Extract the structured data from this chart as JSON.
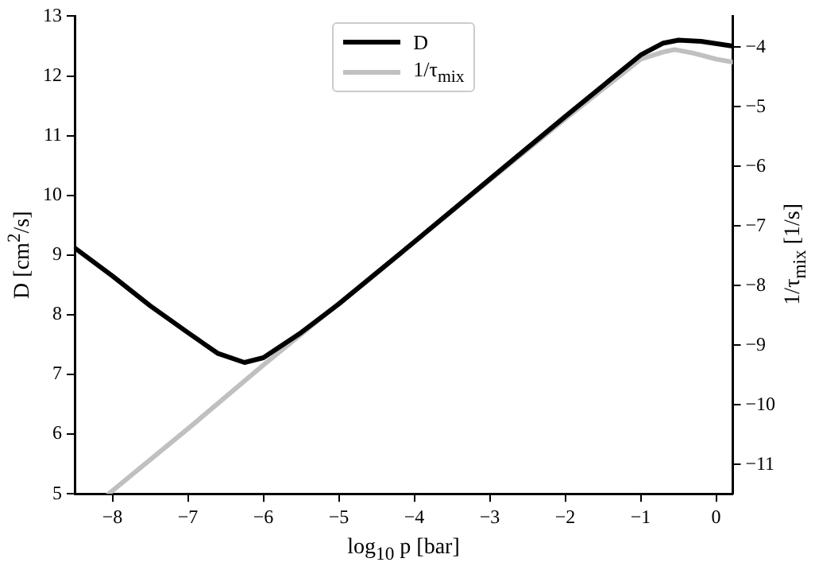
{
  "chart_data": {
    "type": "line",
    "xlabel": "log$_{10}$ p [bar]",
    "ylabel": "D [cm$^{2}$/s]",
    "y2label": "1/τ$_{mix}$ [1/s]",
    "xlim": [
      -8.5,
      0.22
    ],
    "xticks": [
      -8,
      -7,
      -6,
      -5,
      -4,
      -3,
      -2,
      -1,
      0
    ],
    "ylim": [
      5,
      13
    ],
    "yticks": [
      5,
      6,
      7,
      8,
      9,
      10,
      11,
      12,
      13
    ],
    "y2lim": [
      -11.49,
      -3.48
    ],
    "y2ticks": [
      -11,
      -10,
      -9,
      -8,
      -7,
      -6,
      -5,
      -4
    ],
    "grid": false,
    "legend": "top",
    "marker": "none",
    "line_style": "solid",
    "series": [
      {
        "name": "D",
        "color": "#000000",
        "x": [
          -8.5,
          -8,
          -7.5,
          -7,
          -6.6,
          -6.25,
          -6,
          -5.5,
          -5,
          -4,
          -3,
          -2,
          -1,
          -0.7,
          -0.5,
          -0.2,
          0.22
        ],
        "values": [
          9.12,
          8.65,
          8.15,
          7.7,
          7.35,
          7.2,
          7.28,
          7.7,
          8.18,
          9.22,
          10.27,
          11.32,
          12.35,
          12.55,
          12.6,
          12.58,
          12.5
        ]
      },
      {
        "name": "1/τ$_{mix}$",
        "color": "#c0c0c0",
        "axis": "y2",
        "x": [
          -8.05,
          -7,
          -6,
          -5,
          -4,
          -3,
          -2,
          -1,
          -0.7,
          -0.55,
          -0.3,
          0,
          0.22
        ],
        "values": [
          -11.49,
          -10.4,
          -9.33,
          -8.3,
          -7.27,
          -6.23,
          -5.2,
          -4.2,
          -4.08,
          -4.04,
          -4.1,
          -4.2,
          -4.25
        ]
      }
    ]
  }
}
